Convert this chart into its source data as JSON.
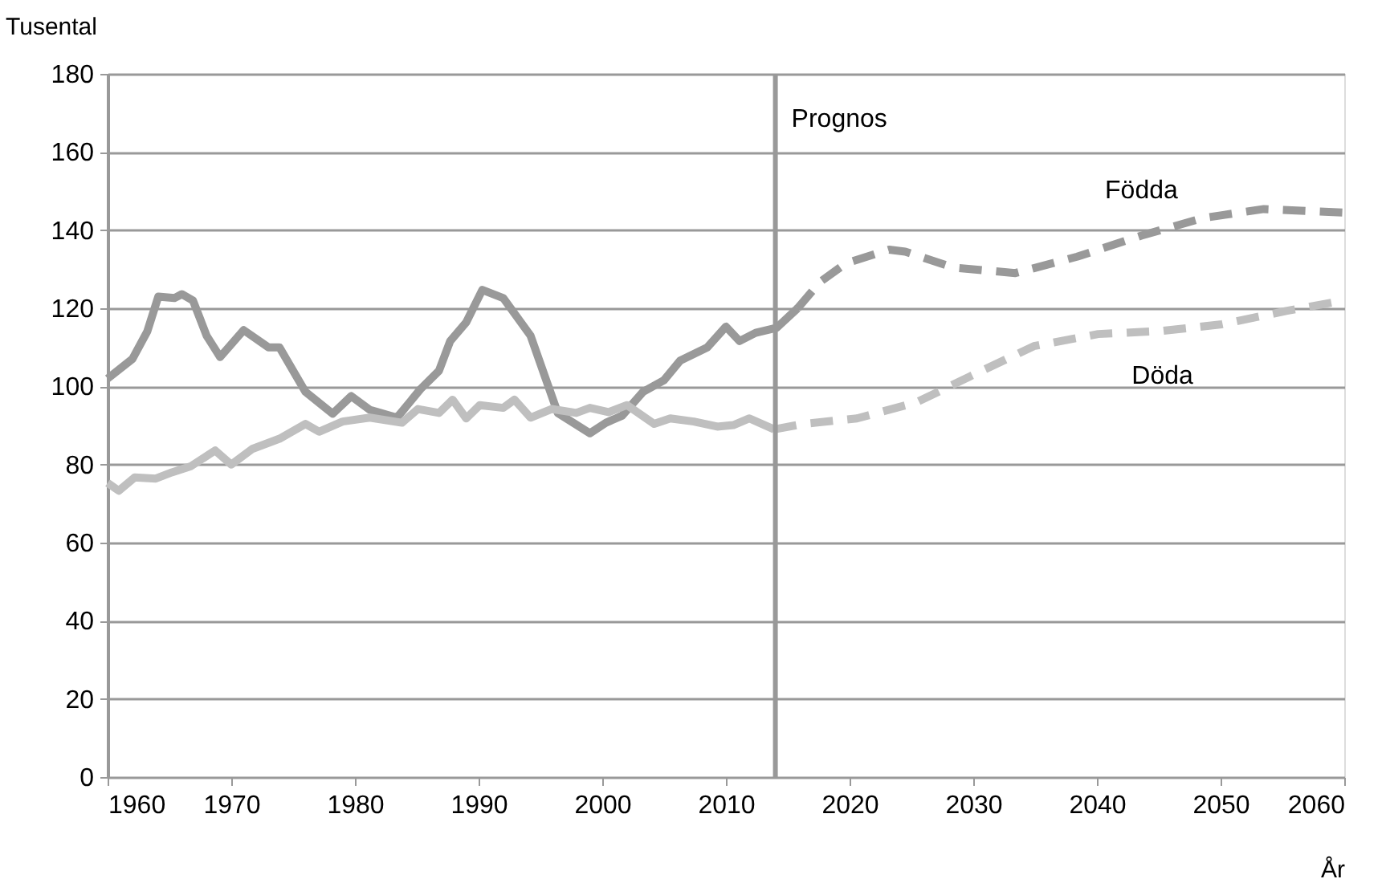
{
  "chart_data": {
    "type": "line",
    "xlabel": "År",
    "ylabel": "Tusental",
    "xlim": [
      1960,
      2060
    ],
    "xticks": [
      1960,
      1970,
      1980,
      1990,
      2000,
      2010,
      2020,
      2030,
      2040,
      2050,
      2060
    ],
    "ylim": [
      0,
      180
    ],
    "yticks": [
      0,
      20,
      40,
      60,
      80,
      100,
      120,
      140,
      160,
      180
    ],
    "grid": "y",
    "legend": false,
    "marker": "none",
    "ref_lines": [
      {
        "axis": "x",
        "value": 2014,
        "label": "Prognos",
        "color": "#999999",
        "line_style": "solid"
      }
    ],
    "series": [
      {
        "color": "#999999",
        "line_style": "solid",
        "x": [
          1960,
          1962,
          1963.2,
          1964.1,
          1965.4,
          1966,
          1966.9,
          1968,
          1969.1,
          1971,
          1973,
          1973.9,
          1976,
          1978.2,
          1979.7,
          1981.2,
          1983.4,
          1985.3,
          1986.8,
          1987.7,
          1989,
          1990.3,
          1992,
          1994.2,
          1996.4,
          1999,
          2000.3,
          2001.6,
          2003.3,
          2005,
          2006.3,
          2008.5,
          2010,
          2011.1,
          2012.4,
          2014.1,
          2015.8
        ],
        "values": [
          102,
          107,
          114,
          123,
          122.6,
          123.6,
          122,
          113,
          107.5,
          114.4,
          110,
          110,
          98.6,
          93,
          97.5,
          94,
          92,
          99.3,
          104,
          111.6,
          116.4,
          124.7,
          122.6,
          113,
          93.2,
          88,
          90.7,
          92.5,
          98.6,
          101.6,
          106.6,
          110,
          115.3,
          111.6,
          113.7,
          115,
          120
        ]
      },
      {
        "color": "#bfbfbf",
        "line_style": "solid",
        "x": [
          1960,
          1960.9,
          1962.2,
          1963.9,
          1965.2,
          1966.7,
          1968.7,
          1970,
          1971.7,
          1973.9,
          1976,
          1977.1,
          1979,
          1981.2,
          1983.8,
          1985.1,
          1986.8,
          1987.9,
          1989,
          1990.1,
          1992,
          1992.9,
          1994.2,
          1995.9,
          1997.9,
          1999,
          2000.5,
          2002,
          2004.2,
          2005.5,
          2007.4,
          2009.3,
          2010.6,
          2011.9,
          2013.9
        ],
        "values": [
          75.3,
          73.3,
          76.7,
          76.4,
          78,
          79.5,
          83.6,
          80,
          84,
          86.6,
          90.4,
          88.4,
          91,
          92,
          90.7,
          94.2,
          93.2,
          96.6,
          91.8,
          95.2,
          94.5,
          96.6,
          92,
          94.2,
          93.2,
          94.5,
          93.4,
          95.2,
          90.4,
          91.8,
          91,
          89.7,
          90.1,
          91.8,
          89
        ]
      },
      {
        "name": "Födda",
        "color": "#999999",
        "line_style": "dashed",
        "x": [
          2015.8,
          2017.6,
          2019.7,
          2023.2,
          2024.5,
          2028.4,
          2033.4,
          2038.4,
          2043.6,
          2048.6,
          2053.5,
          2060
        ],
        "values": [
          120,
          126.7,
          131.5,
          135,
          134.5,
          130.4,
          129,
          133.2,
          138.6,
          143.1,
          145.4,
          144.5
        ]
      },
      {
        "name": "Döda",
        "color": "#bfbfbf",
        "line_style": "dashed",
        "x": [
          2013.9,
          2016.3,
          2020.6,
          2025.4,
          2029.7,
          2034.9,
          2040.1,
          2045.3,
          2050.1,
          2055.3,
          2060
        ],
        "values": [
          89,
          90.4,
          91.8,
          95.9,
          102.5,
          110.3,
          113.4,
          114.2,
          115.9,
          119.3,
          122
        ]
      }
    ]
  }
}
